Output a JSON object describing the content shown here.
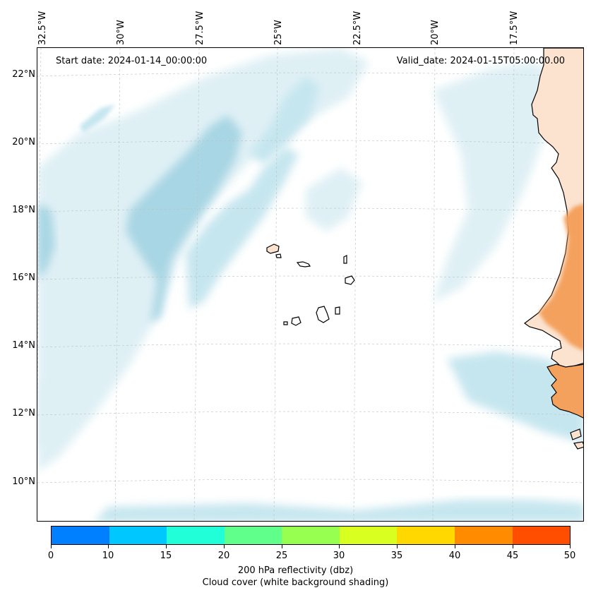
{
  "map": {
    "start_date": "Start date: 2024-01-14_00:00:00",
    "valid_date": "Valid_date: 2024-01-15T05:00:00.00",
    "extent": {
      "lon_min": -33.0,
      "lon_max": -15.2,
      "lat_min": 8.9,
      "lat_max": 22.8
    },
    "lon_labels": [
      "32.5°W",
      "30°W",
      "27.5°W",
      "25°W",
      "22.5°W",
      "20°W",
      "17.5°W"
    ],
    "lat_labels": [
      "22°N",
      "20°N",
      "18°N",
      "16°N",
      "14°N",
      "12°N",
      "10°N"
    ],
    "colors": {
      "cloud_light": "#dff0f5",
      "cloud_mid": "#c6e6ef",
      "cloud_dark": "#a9d6e4",
      "land_light": "#fbe3d0",
      "land_orange": "#f4a15d",
      "gridline": "#bfbfbf"
    }
  },
  "colorbar": {
    "ticks": [
      "0",
      "10",
      "15",
      "20",
      "25",
      "30",
      "35",
      "40",
      "45",
      "50"
    ],
    "colors": [
      "#0080ff",
      "#00c8ff",
      "#20ffd8",
      "#60ff8c",
      "#96ff50",
      "#d8ff20",
      "#ffd800",
      "#ff8c00",
      "#ff4e00"
    ],
    "label_line1": "200 hPa reflectivity (dbz)",
    "label_line2": "Cloud cover (white background shading)"
  }
}
